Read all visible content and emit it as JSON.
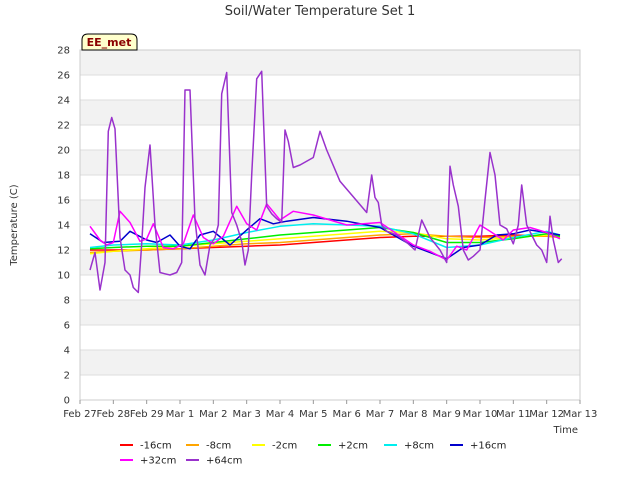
{
  "chart_data": {
    "type": "line",
    "title": "Soil/Water Temperature Set 1",
    "xlabel": "Time",
    "ylabel": "Temperature (C)",
    "badge": "EE_met",
    "ylim": [
      0,
      28
    ],
    "yticks": [
      0,
      2,
      4,
      6,
      8,
      10,
      12,
      14,
      16,
      18,
      20,
      22,
      24,
      26,
      28
    ],
    "xlim": [
      0,
      15
    ],
    "xticks": [
      {
        "pos": 0,
        "label": "Feb 27"
      },
      {
        "pos": 1,
        "label": "Feb 28"
      },
      {
        "pos": 2,
        "label": "Feb 29"
      },
      {
        "pos": 3,
        "label": "Mar 1"
      },
      {
        "pos": 4,
        "label": "Mar 2"
      },
      {
        "pos": 5,
        "label": "Mar 3"
      },
      {
        "pos": 6,
        "label": "Mar 4"
      },
      {
        "pos": 7,
        "label": "Mar 5"
      },
      {
        "pos": 8,
        "label": "Mar 6"
      },
      {
        "pos": 9,
        "label": "Mar 7"
      },
      {
        "pos": 10,
        "label": "Mar 8"
      },
      {
        "pos": 11,
        "label": "Mar 9"
      },
      {
        "pos": 12,
        "label": "Mar 10"
      },
      {
        "pos": 13,
        "label": "Mar 11"
      },
      {
        "pos": 14,
        "label": "Mar 12"
      },
      {
        "pos": 15,
        "label": "Mar 13"
      }
    ],
    "grid": "horizontal bands",
    "legend_position": "bottom",
    "series": [
      {
        "name": "-16cm",
        "color": "#ff0000",
        "x": [
          0.3,
          1,
          2,
          3,
          4,
          5,
          6,
          7,
          8,
          9,
          10,
          11,
          12,
          13,
          14,
          14.4
        ],
        "y": [
          12.0,
          12.0,
          12.0,
          12.1,
          12.2,
          12.3,
          12.4,
          12.6,
          12.8,
          13.0,
          13.1,
          13.1,
          13.1,
          13.2,
          13.1,
          13.1
        ]
      },
      {
        "name": "-8cm",
        "color": "#ffa500",
        "x": [
          0.3,
          1,
          2,
          3,
          4,
          5,
          6,
          7,
          8,
          9,
          10,
          11,
          12,
          13,
          14,
          14.4
        ],
        "y": [
          11.8,
          11.9,
          12.0,
          12.1,
          12.3,
          12.5,
          12.6,
          12.8,
          13.0,
          13.2,
          13.3,
          13.1,
          13.0,
          13.1,
          13.1,
          13.0
        ]
      },
      {
        "name": "-2cm",
        "color": "#ffff00",
        "x": [
          0.3,
          1,
          2,
          3,
          4,
          5,
          6,
          7,
          8,
          9,
          10,
          11,
          12,
          13,
          14,
          14.4
        ],
        "y": [
          11.7,
          11.9,
          12.1,
          12.3,
          12.5,
          12.7,
          12.9,
          13.1,
          13.3,
          13.5,
          13.4,
          12.9,
          12.8,
          13.0,
          13.2,
          13.1
        ]
      },
      {
        "name": "+2cm",
        "color": "#00ee00",
        "x": [
          0.3,
          1,
          2,
          3,
          4,
          5,
          6,
          7,
          8,
          9,
          10,
          11,
          12,
          13,
          14,
          14.4
        ],
        "y": [
          12.1,
          12.2,
          12.3,
          12.3,
          12.6,
          12.9,
          13.2,
          13.4,
          13.6,
          13.8,
          13.4,
          12.6,
          12.6,
          12.9,
          13.3,
          13.1
        ]
      },
      {
        "name": "+8cm",
        "color": "#00eeee",
        "x": [
          0.3,
          1,
          2,
          3,
          4,
          5,
          6,
          7,
          8,
          9,
          10,
          11,
          12,
          13,
          14,
          14.4
        ],
        "y": [
          12.2,
          12.4,
          12.5,
          12.4,
          12.8,
          13.4,
          13.9,
          14.1,
          14.0,
          13.9,
          13.3,
          12.2,
          12.4,
          13.0,
          13.5,
          13.2
        ]
      },
      {
        "name": "+16cm",
        "color": "#0000cc",
        "x": [
          0.3,
          0.7,
          1.2,
          1.5,
          2,
          2.3,
          2.7,
          3.0,
          3.3,
          3.6,
          4.0,
          4.5,
          5.0,
          5.4,
          5.8,
          6.2,
          7.0,
          8.0,
          9.0,
          10.0,
          11.0,
          11.5,
          12.0,
          12.5,
          13.0,
          13.5,
          14.0,
          14.4
        ],
        "y": [
          13.3,
          12.6,
          12.7,
          13.5,
          12.8,
          12.6,
          13.2,
          12.3,
          12.1,
          13.2,
          13.5,
          12.4,
          13.6,
          14.5,
          14.1,
          14.3,
          14.6,
          14.3,
          13.8,
          12.3,
          11.3,
          12.2,
          12.4,
          13.2,
          13.3,
          13.6,
          13.4,
          13.2
        ]
      },
      {
        "name": "+32cm",
        "color": "#ff00ff",
        "x": [
          0.3,
          0.6,
          0.8,
          1.0,
          1.2,
          1.5,
          1.8,
          2.0,
          2.2,
          2.5,
          2.8,
          3.1,
          3.4,
          3.7,
          4.0,
          4.3,
          4.7,
          5.0,
          5.3,
          5.6,
          6.0,
          6.4,
          7.0,
          8.0,
          9.0,
          10.0,
          10.5,
          11.0,
          11.3,
          11.6,
          12.0,
          12.3,
          12.7,
          13.0,
          13.5,
          14.0,
          14.4
        ],
        "y": [
          13.9,
          12.8,
          12.4,
          12.6,
          15.1,
          14.2,
          12.7,
          12.9,
          14.1,
          12.2,
          12.1,
          12.5,
          14.8,
          13.0,
          12.5,
          13.1,
          15.5,
          14.1,
          13.6,
          15.7,
          14.4,
          15.1,
          14.8,
          14.0,
          14.2,
          12.4,
          11.9,
          11.2,
          12.3,
          12.0,
          14.0,
          13.5,
          12.8,
          13.6,
          13.8,
          13.4,
          12.9
        ]
      },
      {
        "name": "+64cm",
        "color": "#9932cc",
        "x": [
          0.3,
          0.45,
          0.6,
          0.75,
          0.85,
          0.95,
          1.05,
          1.2,
          1.35,
          1.5,
          1.6,
          1.75,
          1.85,
          1.95,
          2.1,
          2.25,
          2.4,
          2.55,
          2.7,
          2.9,
          3.05,
          3.15,
          3.3,
          3.45,
          3.6,
          3.75,
          3.9,
          4.05,
          4.15,
          4.25,
          4.4,
          4.55,
          4.7,
          4.85,
          4.95,
          5.05,
          5.15,
          5.3,
          5.45,
          5.6,
          5.75,
          5.9,
          6.05,
          6.15,
          6.25,
          6.4,
          6.6,
          7.0,
          7.2,
          7.4,
          7.8,
          8.6,
          8.75,
          8.85,
          8.95,
          9.05,
          9.2,
          9.5,
          9.85,
          10.05,
          10.25,
          10.5,
          10.8,
          11.0,
          11.1,
          11.2,
          11.35,
          11.5,
          11.65,
          11.8,
          12.0,
          12.15,
          12.3,
          12.45,
          12.6,
          12.8,
          13.0,
          13.15,
          13.25,
          13.4,
          13.55,
          13.7,
          13.85,
          14.0,
          14.1,
          14.2,
          14.35,
          14.45
        ],
        "y": [
          10.4,
          11.8,
          8.8,
          11.0,
          21.5,
          22.6,
          21.7,
          13.0,
          10.4,
          10.0,
          9.0,
          8.6,
          12.5,
          17.0,
          20.4,
          14.0,
          10.2,
          10.1,
          10.0,
          10.2,
          11.0,
          24.8,
          24.8,
          14.4,
          10.8,
          10.0,
          12.4,
          13.0,
          14.0,
          24.5,
          26.2,
          15.0,
          14.0,
          12.7,
          10.8,
          12.0,
          18.0,
          25.7,
          26.3,
          15.5,
          14.9,
          14.5,
          14.2,
          21.6,
          20.7,
          18.6,
          18.8,
          19.4,
          21.5,
          20.0,
          17.5,
          15.0,
          18.0,
          16.2,
          15.8,
          14.0,
          13.5,
          13.2,
          12.5,
          12.0,
          14.4,
          13.0,
          12.0,
          11.0,
          18.7,
          17.2,
          15.5,
          12.0,
          11.2,
          11.5,
          12.0,
          16.0,
          19.8,
          18.0,
          14.0,
          13.7,
          12.5,
          14.0,
          17.2,
          14.0,
          13.2,
          12.4,
          12.0,
          11.0,
          14.7,
          12.8,
          11.0,
          11.3
        ]
      }
    ]
  }
}
